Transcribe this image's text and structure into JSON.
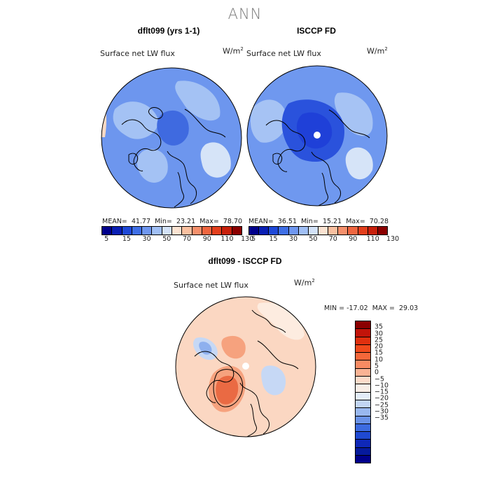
{
  "title": "ANN",
  "field_label": "Surface net LW flux",
  "units_base": "W/m",
  "units_exp": "2",
  "panels": [
    {
      "title": "dflt099 (yrs 1-1)",
      "stats": {
        "mean_label": "MEAN=",
        "mean": "41.77",
        "min_label": "Min=",
        "min": "23.21",
        "max_label": "Max=",
        "max": "78.70"
      }
    },
    {
      "title": "ISCCP FD",
      "stats": {
        "mean_label": "MEAN=",
        "mean": "36.51",
        "min_label": "Min=",
        "min": "15.21",
        "max_label": "Max=",
        "max": "70.28"
      }
    }
  ],
  "diff_panel": {
    "title": "dflt099 - ISCCP FD",
    "stats_text": "MIN = -17.02  MAX =  29.03"
  },
  "colorbar_abs": {
    "colors": [
      "#00008b",
      "#0a1fb4",
      "#1f49d8",
      "#3f6fe6",
      "#6f97f0",
      "#a0bff5",
      "#d3e2f8",
      "#fbe3d2",
      "#f9c0a0",
      "#f5906c",
      "#ef6640",
      "#e33f1d",
      "#c8200c",
      "#8b0000"
    ],
    "tick_labels": [
      "5",
      "15",
      "30",
      "50",
      "70",
      "90",
      "110",
      "130"
    ]
  },
  "colorbar_diff": {
    "colors": [
      "#8b0000",
      "#c2140a",
      "#e0300f",
      "#f04a1c",
      "#f5673a",
      "#f88b63",
      "#fab394",
      "#fcdcca",
      "#f8eee6",
      "#e3ecf8",
      "#c2d5f3",
      "#99b8ef",
      "#6a92e8",
      "#3d6be0",
      "#1f49d2",
      "#0f28b8",
      "#061a9c",
      "#00008b"
    ],
    "tick_labels": [
      "35",
      "30",
      "25",
      "20",
      "15",
      "10",
      "5",
      "0",
      "−5",
      "−10",
      "−15",
      "−20",
      "−25",
      "−30",
      "−35"
    ]
  },
  "map_colors": {
    "model": {
      "base": "#6d96ee",
      "light": "#a4c2f4",
      "pale": "#d6e4f8",
      "dark": "#3f6ae0",
      "warm": "#f6d9c4"
    },
    "obs": {
      "base": "#6f98ef",
      "light": "#a6c3f4",
      "pale": "#d6e4f8",
      "dark": "#2a52dc",
      "deep": "#1f40d8",
      "warm": "#f4d0b8"
    },
    "diff": {
      "base": "#fbd7c2",
      "light": "#fdece0",
      "warm": "#f6a27e",
      "hot": "#ea6a43",
      "cool": "#c6d8f5",
      "blue": "#8eb0ee"
    }
  }
}
